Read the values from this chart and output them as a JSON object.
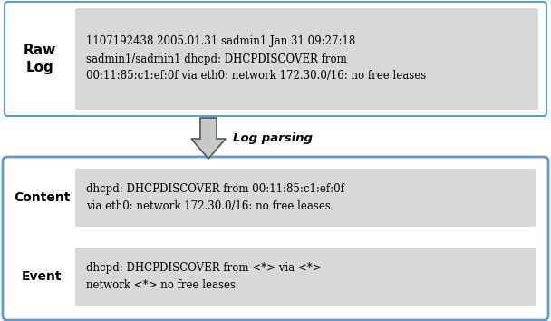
{
  "raw_log_label": "Raw\nLog",
  "raw_log_text": "1107192438 2005.01.31 sadmin1 Jan 31 09:27:18\nsadmin1/sadmin1 dhcpd: DHCPDISCOVER from\n00:11:85:c1:ef:0f via eth0: network 172.30.0/16: no free leases",
  "arrow_label": "Log parsing",
  "content_label": "Content",
  "content_text": "dhcpd: DHCPDISCOVER from 00:11:85:c1:ef:0f\nvia eth0: network 172.30.0/16: no free leases",
  "event_label": "Event",
  "event_text": "dhcpd: DHCPDISCOVER from <*> via <*>\nnetwork <*> no free leases",
  "bg_color": "#ffffff",
  "box_gray": "#d8d8d8",
  "outer_blue_border": "#5b9bd5",
  "outer_gray_border": "#aaaaaa",
  "label_font_size": 10,
  "text_font_size": 8.5,
  "arrow_label_font_size": 9.5,
  "arrow_fill": "#c8c8c8",
  "arrow_edge": "#555555"
}
